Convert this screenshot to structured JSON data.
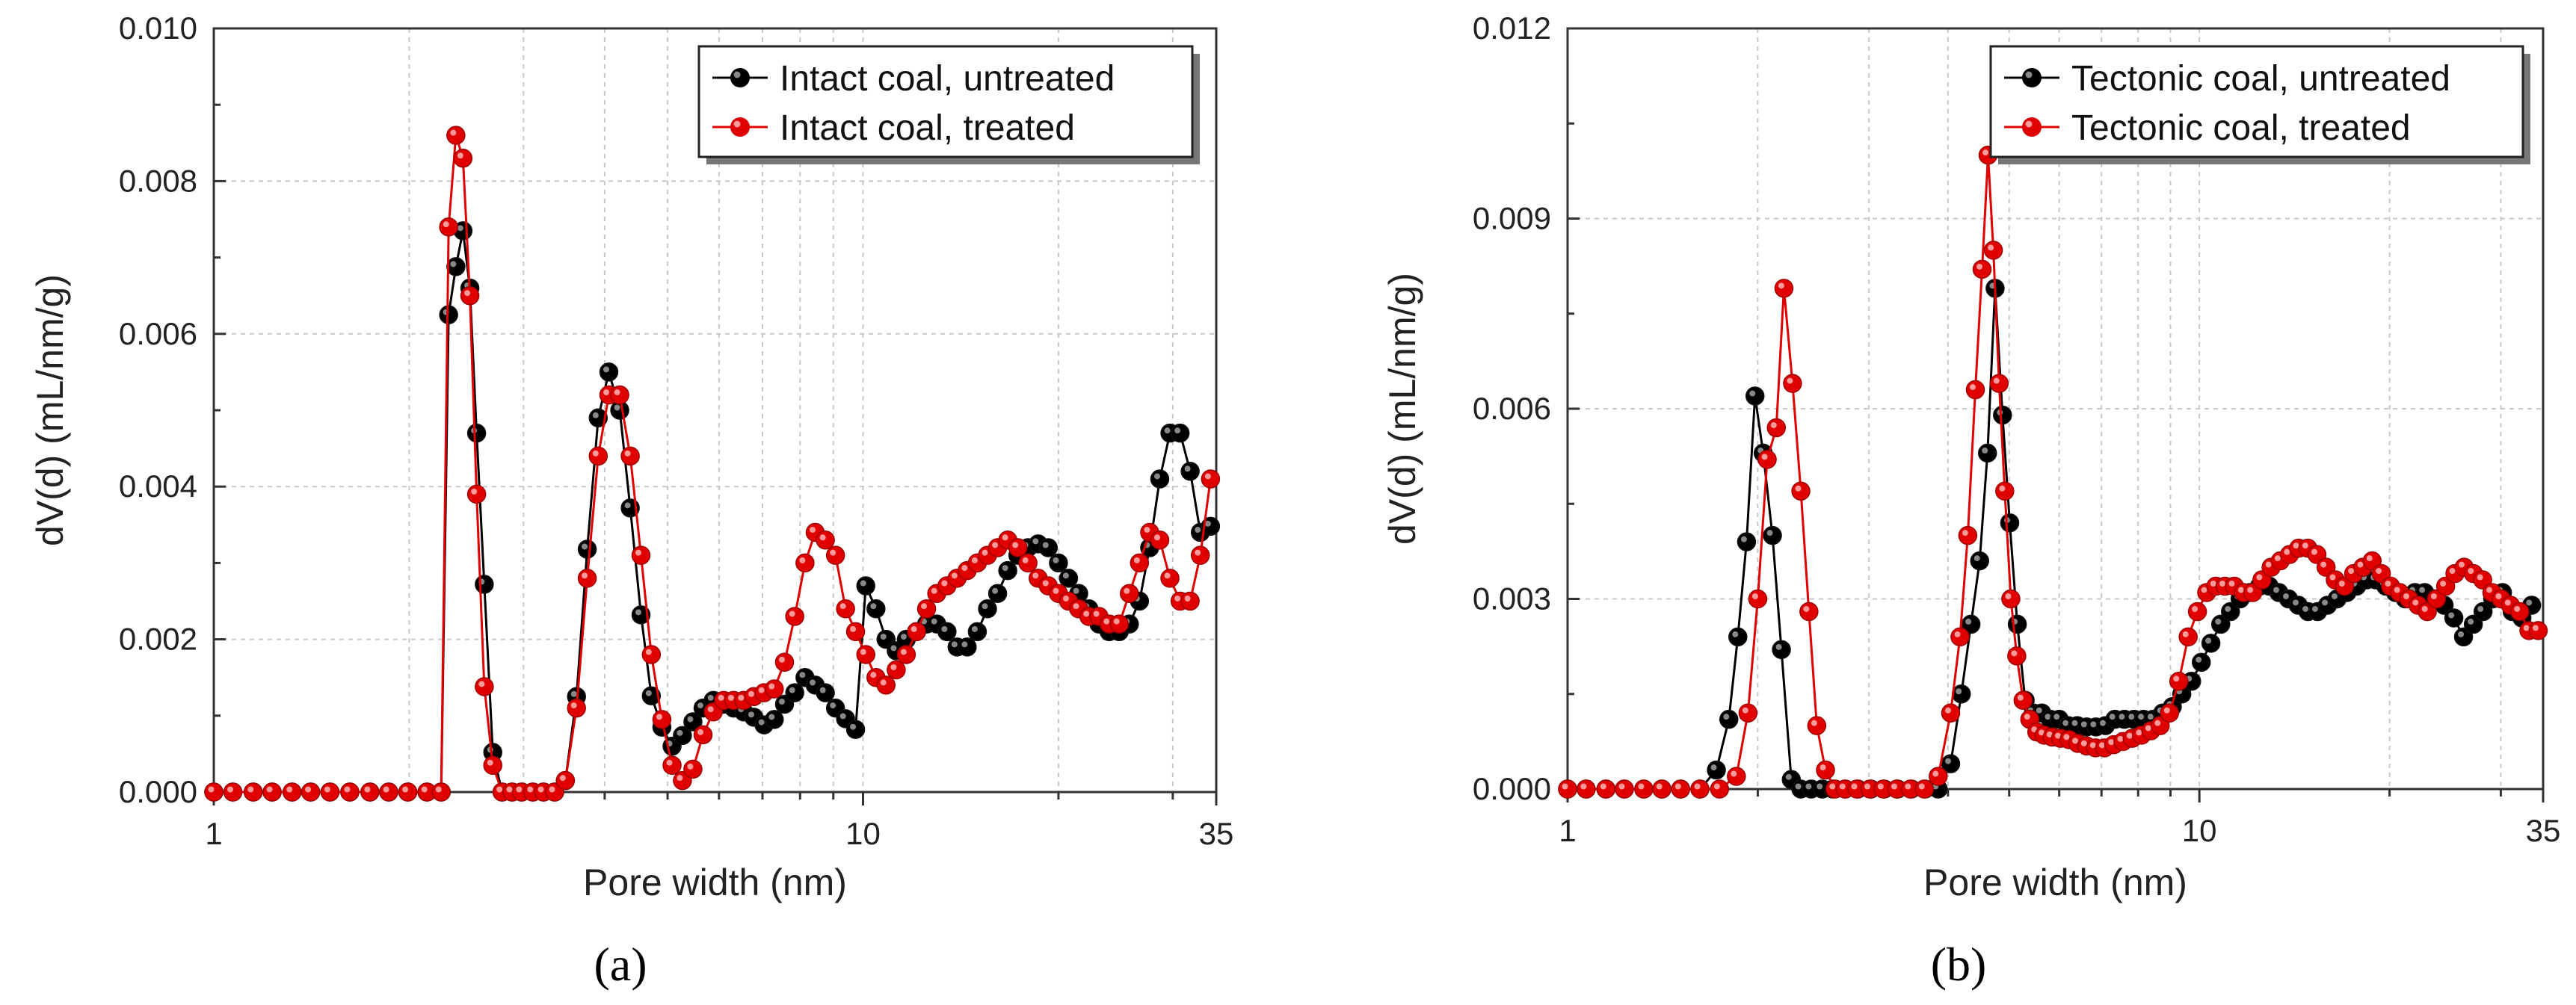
{
  "figure": {
    "panels": [
      "(a)",
      "(b)"
    ]
  },
  "chart_data": [
    {
      "type": "scatter",
      "panel_label": "a",
      "xlabel": "Pore width (nm)",
      "ylabel": "dV(d) (mL/nm/g)",
      "xscale": "log",
      "xlim": [
        1,
        35
      ],
      "ylim": [
        0,
        0.01
      ],
      "xticks": [
        1,
        10,
        35
      ],
      "xtick_labels": [
        "1",
        "10",
        "35"
      ],
      "yticks": [
        0,
        0.002,
        0.004,
        0.006,
        0.008,
        0.01
      ],
      "ytick_labels": [
        "0.000",
        "0.002",
        "0.004",
        "0.006",
        "0.008",
        "0.010"
      ],
      "grid": true,
      "legend_position": "top-right",
      "series": [
        {
          "name": "Intact coal, untreated",
          "color": "#000000",
          "x": [
            1.0,
            1.07,
            1.15,
            1.23,
            1.32,
            1.41,
            1.51,
            1.62,
            1.74,
            1.86,
            1.99,
            2.13,
            2.24,
            2.3,
            2.36,
            2.42,
            2.48,
            2.54,
            2.61,
            2.69,
            2.78,
            2.88,
            2.98,
            3.1,
            3.22,
            3.35,
            3.48,
            3.62,
            3.76,
            3.91,
            4.06,
            4.22,
            4.38,
            4.55,
            4.72,
            4.9,
            5.08,
            5.27,
            5.47,
            5.67,
            5.88,
            6.1,
            6.32,
            6.55,
            6.79,
            7.04,
            7.3,
            7.57,
            7.85,
            8.14,
            8.44,
            8.75,
            9.07,
            9.4,
            9.74,
            10.1,
            10.47,
            10.85,
            11.25,
            11.66,
            12.09,
            12.53,
            12.99,
            13.47,
            13.96,
            14.47,
            15.0,
            15.55,
            16.12,
            16.71,
            17.32,
            17.95,
            18.61,
            19.29,
            20.0,
            20.73,
            21.49,
            22.28,
            23.09,
            23.94,
            24.81,
            25.72,
            26.66,
            27.64,
            28.65,
            29.7,
            30.79,
            31.91,
            33.08,
            34.3
          ],
          "y": [
            0,
            0,
            0,
            0,
            0,
            0,
            0,
            0,
            0,
            0,
            0,
            0,
            0,
            0.00625,
            0.00688,
            0.00735,
            0.0066,
            0.0047,
            0.00272,
            0.00052,
            0,
            0,
            0,
            0,
            0,
            0,
            0.00015,
            0.00125,
            0.00318,
            0.0049,
            0.0055,
            0.005,
            0.00372,
            0.00232,
            0.00126,
            0.00085,
            0.0006,
            0.00074,
            0.00092,
            0.0011,
            0.0012,
            0.00115,
            0.0011,
            0.00105,
            0.00098,
            0.00088,
            0.00095,
            0.00115,
            0.0013,
            0.0015,
            0.0014,
            0.0013,
            0.0011,
            0.00096,
            0.00082,
            0.0027,
            0.0024,
            0.002,
            0.00185,
            0.002,
            0.0021,
            0.0022,
            0.0022,
            0.0021,
            0.0019,
            0.0019,
            0.0021,
            0.0024,
            0.0026,
            0.0029,
            0.0031,
            0.0032,
            0.00325,
            0.0032,
            0.003,
            0.0028,
            0.0026,
            0.0024,
            0.0022,
            0.0021,
            0.0021,
            0.0022,
            0.0025,
            0.0032,
            0.0041,
            0.0047,
            0.0047,
            0.0042,
            0.0034,
            0.00348
          ]
        },
        {
          "name": "Intact coal, treated",
          "color": "#e00000",
          "x": [
            1.0,
            1.07,
            1.15,
            1.23,
            1.32,
            1.41,
            1.51,
            1.62,
            1.74,
            1.86,
            1.99,
            2.13,
            2.24,
            2.3,
            2.36,
            2.42,
            2.48,
            2.54,
            2.61,
            2.69,
            2.78,
            2.88,
            2.98,
            3.1,
            3.22,
            3.35,
            3.48,
            3.62,
            3.76,
            3.91,
            4.06,
            4.22,
            4.38,
            4.55,
            4.72,
            4.9,
            5.08,
            5.27,
            5.47,
            5.67,
            5.88,
            6.1,
            6.32,
            6.55,
            6.79,
            7.04,
            7.3,
            7.57,
            7.85,
            8.14,
            8.44,
            8.75,
            9.07,
            9.4,
            9.74,
            10.1,
            10.47,
            10.85,
            11.25,
            11.66,
            12.09,
            12.53,
            12.99,
            13.47,
            13.96,
            14.47,
            15.0,
            15.55,
            16.12,
            16.71,
            17.32,
            17.95,
            18.61,
            19.29,
            20.0,
            20.73,
            21.49,
            22.28,
            23.09,
            23.94,
            24.81,
            25.72,
            26.66,
            27.64,
            28.65,
            29.7,
            30.79,
            31.91,
            33.08,
            34.3
          ],
          "y": [
            0,
            0,
            0,
            0,
            0,
            0,
            0,
            0,
            0,
            0,
            0,
            0,
            0,
            0.0074,
            0.0086,
            0.0083,
            0.0065,
            0.0039,
            0.00138,
            0.00035,
            0,
            0,
            0,
            0,
            0,
            0,
            0.00015,
            0.0011,
            0.0028,
            0.0044,
            0.0052,
            0.0052,
            0.0044,
            0.0031,
            0.0018,
            0.00095,
            0.00035,
            0.00015,
            0.0003,
            0.00075,
            0.00105,
            0.0012,
            0.0012,
            0.0012,
            0.00125,
            0.0013,
            0.00135,
            0.0017,
            0.0023,
            0.003,
            0.0034,
            0.0033,
            0.0031,
            0.0024,
            0.0021,
            0.0018,
            0.0015,
            0.0014,
            0.0016,
            0.0018,
            0.0021,
            0.0024,
            0.0026,
            0.0027,
            0.0028,
            0.0029,
            0.003,
            0.0031,
            0.0032,
            0.0033,
            0.0032,
            0.003,
            0.0028,
            0.0027,
            0.0026,
            0.0025,
            0.0024,
            0.0023,
            0.0023,
            0.0022,
            0.0022,
            0.0026,
            0.003,
            0.0034,
            0.0033,
            0.0028,
            0.0025,
            0.0025,
            0.0031,
            0.0041
          ]
        }
      ]
    },
    {
      "type": "scatter",
      "panel_label": "b",
      "xlabel": "Pore width (nm)",
      "ylabel": "dV(d) (mL/nm/g)",
      "xscale": "log",
      "xlim": [
        1,
        35
      ],
      "ylim": [
        0,
        0.012
      ],
      "xticks": [
        1,
        10,
        35
      ],
      "xtick_labels": [
        "1",
        "10",
        "35"
      ],
      "yticks": [
        0,
        0.003,
        0.006,
        0.009,
        0.012
      ],
      "ytick_labels": [
        "0.000",
        "0.003",
        "0.006",
        "0.009",
        "0.012"
      ],
      "grid": true,
      "legend_position": "top-right",
      "series": [
        {
          "name": "Tectonic coal, untreated",
          "color": "#000000",
          "x": [
            1.0,
            1.07,
            1.15,
            1.23,
            1.32,
            1.41,
            1.51,
            1.62,
            1.72,
            1.8,
            1.86,
            1.92,
            1.98,
            2.04,
            2.11,
            2.18,
            2.26,
            2.34,
            2.43,
            2.53,
            2.63,
            2.75,
            2.88,
            3.02,
            3.17,
            3.33,
            3.5,
            3.68,
            3.86,
            4.04,
            4.2,
            4.35,
            4.49,
            4.62,
            4.75,
            4.88,
            5.01,
            5.15,
            5.3,
            5.46,
            5.63,
            5.81,
            6.0,
            6.2,
            6.41,
            6.63,
            6.86,
            7.1,
            7.35,
            7.61,
            7.88,
            8.16,
            8.45,
            8.75,
            9.06,
            9.38,
            9.72,
            10.07,
            10.43,
            10.81,
            11.2,
            11.6,
            12.02,
            12.45,
            12.9,
            13.36,
            13.84,
            14.34,
            14.86,
            15.39,
            15.95,
            16.52,
            17.12,
            17.74,
            18.38,
            19.04,
            19.73,
            20.44,
            21.18,
            21.94,
            22.73,
            23.55,
            24.4,
            25.28,
            26.19,
            27.14,
            28.12,
            29.13,
            30.18,
            31.27,
            32.4,
            33.57
          ],
          "y": [
            0,
            0,
            0,
            0,
            0,
            0,
            0,
            0,
            0.0003,
            0.0011,
            0.0024,
            0.0039,
            0.0062,
            0.0053,
            0.004,
            0.0022,
            0.00015,
            0,
            0,
            0,
            0,
            0,
            0,
            0,
            0,
            0,
            0,
            0,
            0,
            0.0004,
            0.0015,
            0.0026,
            0.0036,
            0.0053,
            0.0079,
            0.0059,
            0.0042,
            0.0026,
            0.0014,
            0.0012,
            0.0012,
            0.0011,
            0.0011,
            0.001,
            0.001,
            0.00098,
            0.00098,
            0.001,
            0.0011,
            0.0011,
            0.0011,
            0.0011,
            0.0011,
            0.0012,
            0.0013,
            0.0015,
            0.0017,
            0.002,
            0.0023,
            0.0026,
            0.0028,
            0.003,
            0.0031,
            0.0032,
            0.0032,
            0.0031,
            0.003,
            0.0029,
            0.0028,
            0.0028,
            0.0029,
            0.003,
            0.0031,
            0.0032,
            0.0033,
            0.0033,
            0.0032,
            0.0031,
            0.003,
            0.0031,
            0.0031,
            0.003,
            0.0029,
            0.0027,
            0.0024,
            0.0026,
            0.0028,
            0.003,
            0.0031,
            0.0028,
            0.0027,
            0.0029
          ]
        },
        {
          "name": "Tectonic coal, treated",
          "color": "#e00000",
          "x": [
            1.0,
            1.07,
            1.15,
            1.23,
            1.32,
            1.41,
            1.51,
            1.62,
            1.74,
            1.85,
            1.93,
            2.0,
            2.07,
            2.14,
            2.2,
            2.27,
            2.34,
            2.41,
            2.48,
            2.56,
            2.65,
            2.75,
            2.87,
            3.01,
            3.16,
            3.32,
            3.49,
            3.67,
            3.86,
            4.04,
            4.18,
            4.3,
            4.42,
            4.53,
            4.63,
            4.72,
            4.82,
            4.92,
            5.03,
            5.14,
            5.26,
            5.39,
            5.53,
            5.68,
            5.85,
            6.03,
            6.22,
            6.42,
            6.63,
            6.85,
            7.08,
            7.32,
            7.57,
            7.83,
            8.1,
            8.38,
            8.67,
            8.97,
            9.28,
            9.6,
            9.93,
            10.27,
            10.62,
            10.98,
            11.36,
            11.75,
            12.15,
            12.56,
            12.99,
            13.43,
            13.89,
            14.36,
            14.85,
            15.35,
            15.87,
            16.41,
            16.97,
            17.55,
            18.15,
            18.77,
            19.41,
            20.07,
            20.75,
            21.46,
            22.19,
            22.95,
            23.73,
            24.54,
            25.38,
            26.25,
            27.15,
            28.08,
            29.04,
            30.04,
            31.07,
            32.14,
            33.24,
            34.38
          ],
          "y": [
            0,
            0,
            0,
            0,
            0,
            0,
            0,
            0,
            0,
            0.0002,
            0.0012,
            0.003,
            0.0052,
            0.0057,
            0.0079,
            0.0064,
            0.0047,
            0.0028,
            0.001,
            0.0003,
            0,
            0,
            0,
            0,
            0,
            0,
            0,
            0,
            0.0002,
            0.0012,
            0.0024,
            0.004,
            0.0063,
            0.0082,
            0.01,
            0.0085,
            0.0064,
            0.0047,
            0.003,
            0.0021,
            0.0014,
            0.0011,
            0.0009,
            0.00085,
            0.00082,
            0.0008,
            0.00078,
            0.00072,
            0.00068,
            0.00065,
            0.00065,
            0.0007,
            0.00075,
            0.0008,
            0.00085,
            0.00092,
            0.001,
            0.0012,
            0.0017,
            0.0024,
            0.0028,
            0.0031,
            0.0032,
            0.0032,
            0.0032,
            0.0031,
            0.0031,
            0.0033,
            0.0035,
            0.0036,
            0.0037,
            0.0038,
            0.0038,
            0.0037,
            0.0035,
            0.0033,
            0.0032,
            0.0034,
            0.0035,
            0.0036,
            0.0034,
            0.0032,
            0.0031,
            0.003,
            0.0029,
            0.0028,
            0.003,
            0.0032,
            0.0034,
            0.0035,
            0.0034,
            0.0033,
            0.0031,
            0.003,
            0.0029,
            0.0028,
            0.0025,
            0.0025
          ]
        }
      ]
    }
  ]
}
